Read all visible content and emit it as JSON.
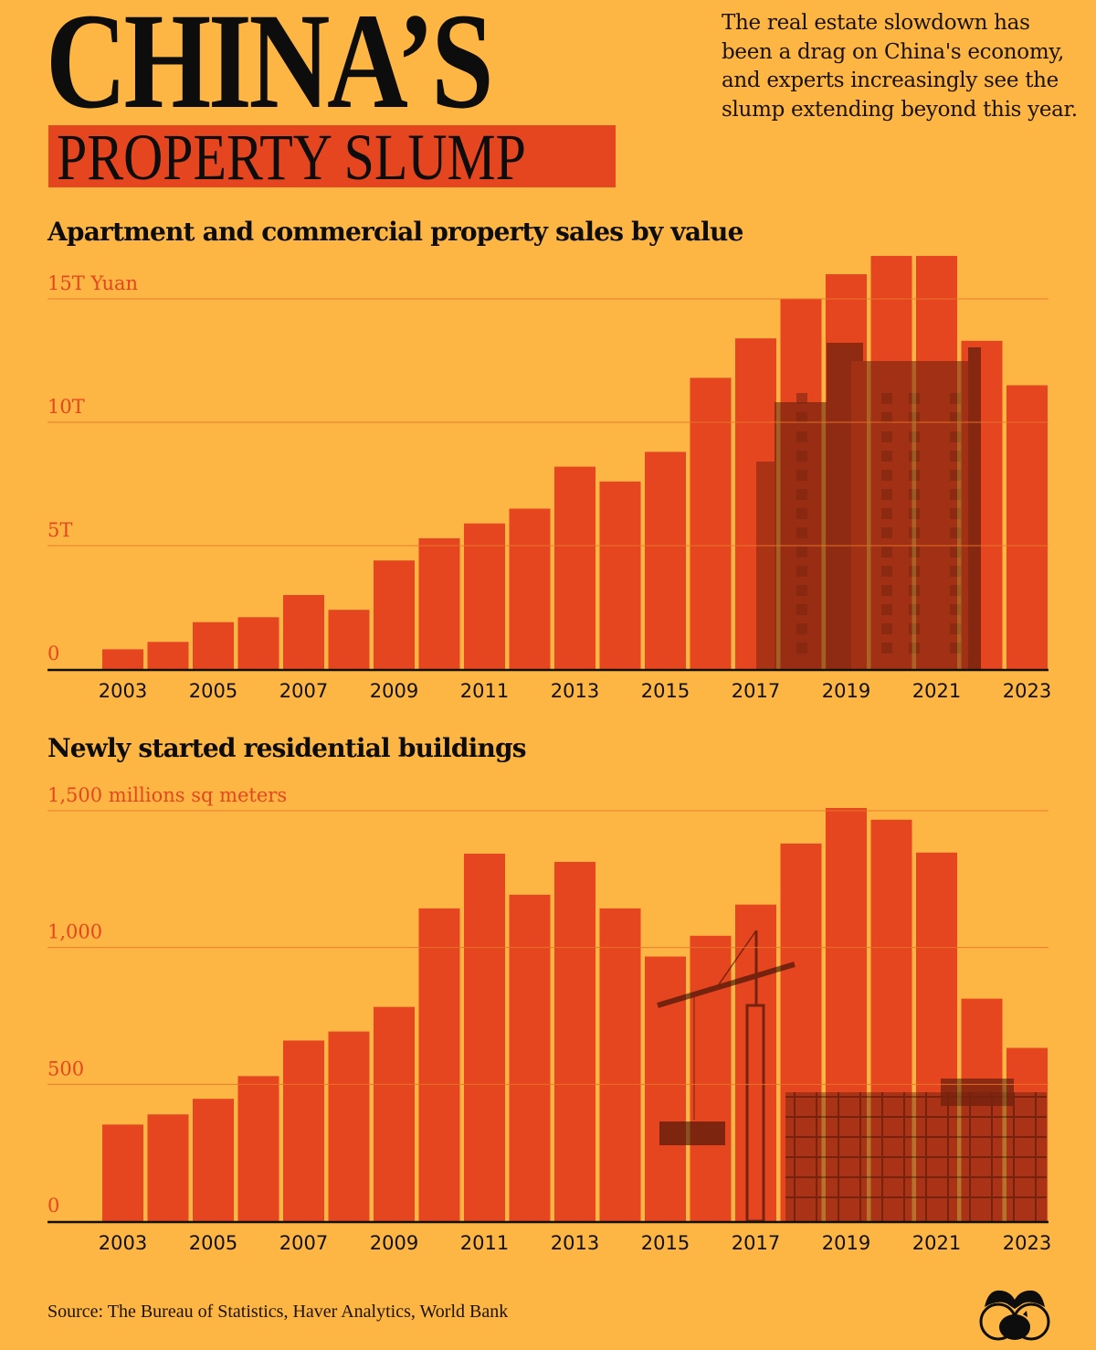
{
  "header": {
    "title_main": "CHINA’S",
    "title_sub": "PROPERTY SLUMP",
    "intro": "The real estate slowdown has been a drag on China's economy, and experts increasingly see the slump extending beyond this year."
  },
  "colors": {
    "background": "#FDB643",
    "bar": "#E5461F",
    "accent_text": "#E5461F",
    "axis": "#111111"
  },
  "chart_data": [
    {
      "type": "bar",
      "title": "Apartment and commercial property sales by value",
      "ylabel": "15T Yuan",
      "xlabel": "",
      "categories": [
        "2003",
        "2004",
        "2005",
        "2006",
        "2007",
        "2008",
        "2009",
        "2010",
        "2011",
        "2012",
        "2013",
        "2014",
        "2015",
        "2016",
        "2017",
        "2018",
        "2019",
        "2020",
        "2021",
        "2022",
        "2023"
      ],
      "values": [
        0.8,
        1.1,
        1.9,
        2.1,
        3.0,
        2.4,
        4.4,
        5.3,
        5.9,
        6.5,
        8.2,
        7.6,
        8.8,
        11.8,
        13.4,
        15.0,
        16.0,
        17.4,
        18.3,
        13.3,
        11.5
      ],
      "unit": "trillion yuan",
      "ylim": [
        0,
        15
      ],
      "yticks": [
        {
          "value": 0,
          "label": "0"
        },
        {
          "value": 5,
          "label": "5T"
        },
        {
          "value": 10,
          "label": "10T"
        },
        {
          "value": 15,
          "label": "15T Yuan"
        }
      ],
      "xtick_labels": [
        "2003",
        "2005",
        "2007",
        "2009",
        "2011",
        "2013",
        "2015",
        "2017",
        "2019",
        "2021",
        "2023"
      ],
      "grid": true,
      "background_image": "apartment-tower-photo"
    },
    {
      "type": "bar",
      "title": "Newly started residential buildings",
      "ylabel": "1,500 millions sq meters",
      "xlabel": "",
      "categories": [
        "2003",
        "2004",
        "2005",
        "2006",
        "2007",
        "2008",
        "2009",
        "2010",
        "2011",
        "2012",
        "2013",
        "2014",
        "2015",
        "2016",
        "2017",
        "2018",
        "2019",
        "2020",
        "2021",
        "2022",
        "2023"
      ],
      "values": [
        353,
        390,
        447,
        530,
        660,
        693,
        783,
        1143,
        1343,
        1193,
        1313,
        1143,
        967,
        1043,
        1157,
        1380,
        1510,
        1467,
        1347,
        813,
        633
      ],
      "unit": "million sq meters",
      "ylim": [
        0,
        1500
      ],
      "yticks": [
        {
          "value": 0,
          "label": "0"
        },
        {
          "value": 500,
          "label": "500"
        },
        {
          "value": 1000,
          "label": "1,000"
        },
        {
          "value": 1500,
          "label": "1,500 millions sq meters"
        }
      ],
      "xtick_labels": [
        "2003",
        "2005",
        "2007",
        "2009",
        "2011",
        "2013",
        "2015",
        "2017",
        "2019",
        "2021",
        "2023"
      ],
      "grid": true,
      "background_image": "construction-crane-photo"
    }
  ],
  "footer": {
    "source": "Source: The Bureau of Statistics, Haver Analytics, World Bank",
    "logo": "binoculars-piggy-bank-logo"
  }
}
